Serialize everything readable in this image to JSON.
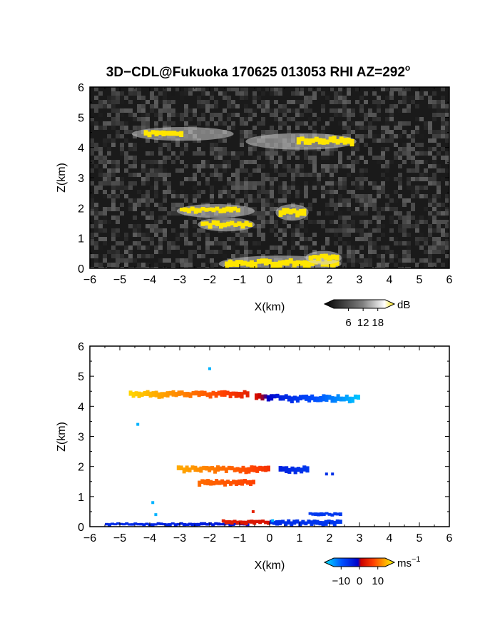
{
  "title": "3D−CDL@Fukuoka 170625 013053 RHI AZ=292",
  "title_deg": "o",
  "colors": {
    "background_top": "#1a1a1a",
    "highlight": "#ffe600",
    "axis": "#000000"
  },
  "chart_data": [
    {
      "type": "heatmap",
      "panel": "top",
      "field": "backscatter intensity",
      "xlabel": "X(km)",
      "ylabel": "Z(km)",
      "xlim": [
        -6,
        6
      ],
      "ylim": [
        0,
        6
      ],
      "xticks": [
        -6,
        -5,
        -4,
        -3,
        -2,
        -1,
        0,
        1,
        2,
        3,
        4,
        5,
        6
      ],
      "yticks": [
        0,
        1,
        2,
        3,
        4,
        5,
        6
      ],
      "background": "noisy dark gray",
      "colorbar": {
        "ticks": [
          6,
          12,
          18
        ],
        "unit": "dB",
        "range": [
          0,
          21
        ],
        "palette": "grayscale-to-yellow"
      },
      "layers": [
        {
          "x_start": -4.6,
          "x_end": -1.2,
          "z": 4.45,
          "thickness": 0.2,
          "core_x": [
            -4.2,
            -2.9
          ],
          "value": 20
        },
        {
          "x_start": -0.8,
          "x_end": 2.9,
          "z": 4.2,
          "thickness": 0.25,
          "core_x": [
            0.9,
            2.8
          ],
          "value": 20
        },
        {
          "x_start": -3.1,
          "x_end": -0.5,
          "z": 1.9,
          "thickness": 0.2,
          "core_x": [
            -3.0,
            -1.0
          ],
          "value": 20
        },
        {
          "x_start": 0.2,
          "x_end": 1.3,
          "z": 1.85,
          "thickness": 0.25,
          "core_x": [
            0.3,
            1.2
          ],
          "value": 20
        },
        {
          "x_start": -2.4,
          "x_end": -0.5,
          "z": 1.45,
          "thickness": 0.2,
          "core_x": [
            -2.3,
            -0.6
          ],
          "value": 18
        },
        {
          "x_start": -1.7,
          "x_end": 2.4,
          "z": 0.15,
          "thickness": 0.25,
          "core_x": [
            -1.5,
            2.3
          ],
          "value": 20
        },
        {
          "x_start": 1.2,
          "x_end": 2.4,
          "z": 0.35,
          "thickness": 0.2,
          "core_x": [
            1.3,
            2.3
          ],
          "value": 20
        }
      ]
    },
    {
      "type": "heatmap",
      "panel": "bottom",
      "field": "radial velocity",
      "xlabel": "X(km)",
      "ylabel": "Z(km)",
      "xlim": [
        -6,
        6
      ],
      "ylim": [
        0,
        6
      ],
      "xticks": [
        -6,
        -5,
        -4,
        -3,
        -2,
        -1,
        0,
        1,
        2,
        3,
        4,
        5,
        6
      ],
      "yticks": [
        0,
        1,
        2,
        3,
        4,
        5,
        6
      ],
      "colorbar": {
        "ticks": [
          -10,
          0,
          10
        ],
        "unit": "ms",
        "unit_exp": "−1",
        "range": [
          -14,
          14
        ],
        "palette": "cyan-blue-red-yellow"
      },
      "layers": [
        {
          "x_start": -4.7,
          "x_end": -0.7,
          "z": 4.4,
          "thickness": 0.2,
          "v_start": 12,
          "v_end": 3
        },
        {
          "x_start": -0.5,
          "x_end": 0.3,
          "z": 4.3,
          "thickness": 0.2,
          "v_start": 2,
          "v_end": -4
        },
        {
          "x_start": 0.3,
          "x_end": 3.0,
          "z": 4.25,
          "thickness": 0.22,
          "v_start": -4,
          "v_end": -13
        },
        {
          "x_start": -3.1,
          "x_end": 0.0,
          "z": 1.9,
          "thickness": 0.2,
          "v_start": 10,
          "v_end": 4
        },
        {
          "x_start": 0.3,
          "x_end": 1.3,
          "z": 1.88,
          "thickness": 0.22,
          "v_start": -4,
          "v_end": -6
        },
        {
          "x_start": -2.4,
          "x_end": -0.5,
          "z": 1.45,
          "thickness": 0.2,
          "v_start": 7,
          "v_end": 5
        },
        {
          "x_start": -5.5,
          "x_end": -0.7,
          "z": 0.08,
          "thickness": 0.1,
          "v_start": -5,
          "v_end": -3
        },
        {
          "x_start": -1.6,
          "x_end": 0.0,
          "z": 0.15,
          "thickness": 0.15,
          "v_start": 3,
          "v_end": 2
        },
        {
          "x_start": 0.0,
          "x_end": 2.4,
          "z": 0.12,
          "thickness": 0.18,
          "v_start": -5,
          "v_end": -6
        },
        {
          "x_start": 1.3,
          "x_end": 2.4,
          "z": 0.4,
          "thickness": 0.12,
          "v_start": -6,
          "v_end": -6
        }
      ],
      "points": [
        {
          "x": -2.0,
          "z": 5.25,
          "v": -12
        },
        {
          "x": -4.4,
          "z": 3.4,
          "v": -12
        },
        {
          "x": -3.9,
          "z": 0.8,
          "v": -12
        },
        {
          "x": -3.8,
          "z": 0.4,
          "v": -12
        },
        {
          "x": 1.9,
          "z": 1.75,
          "v": -5
        },
        {
          "x": 2.1,
          "z": 1.75,
          "v": -5
        },
        {
          "x": -0.55,
          "z": 0.5,
          "v": 3
        },
        {
          "x": 0.1,
          "z": 0.2,
          "v": -12
        }
      ]
    }
  ]
}
